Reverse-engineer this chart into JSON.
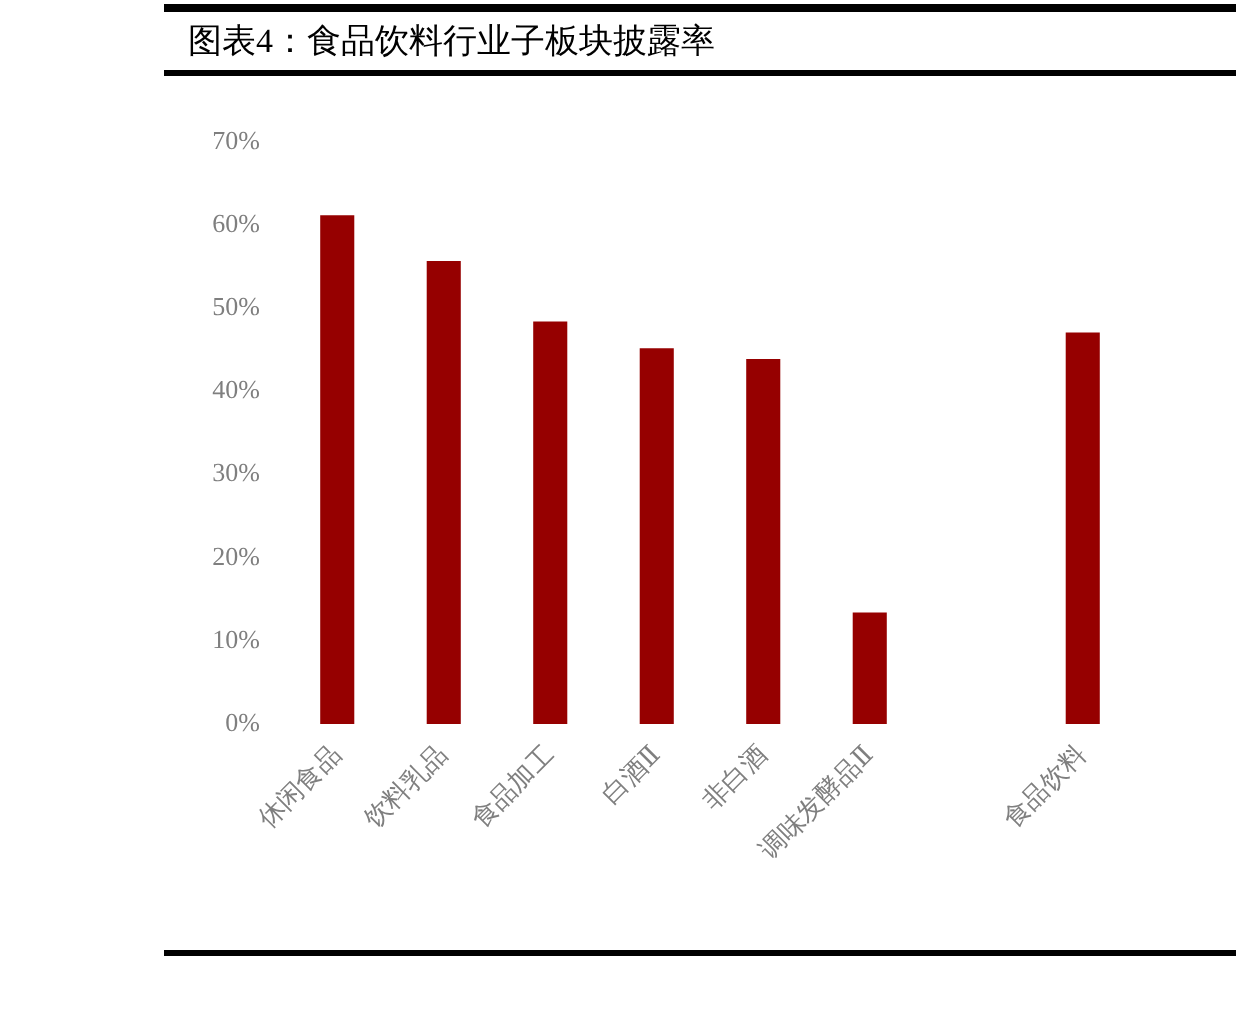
{
  "chart_data": {
    "type": "bar",
    "title": "图表4：食品饮料行业子板块披露率",
    "categories": [
      "休闲食品",
      "饮料乳品",
      "食品加工",
      "白酒Ⅱ",
      "非白酒",
      "调味发酵品Ⅱ",
      null,
      "食品饮料"
    ],
    "values": [
      61.2,
      55.7,
      48.4,
      45.2,
      43.9,
      13.4,
      null,
      47.1
    ],
    "color": "#960000",
    "ylim": [
      0,
      70
    ],
    "yticks": [
      {
        "value": 0,
        "label": "0%"
      },
      {
        "value": 10,
        "label": "10%"
      },
      {
        "value": 20,
        "label": "20%"
      },
      {
        "value": 30,
        "label": "30%"
      },
      {
        "value": 40,
        "label": "40%"
      },
      {
        "value": 50,
        "label": "50%"
      },
      {
        "value": 60,
        "label": "60%"
      },
      {
        "value": 70,
        "label": "70%"
      }
    ]
  }
}
